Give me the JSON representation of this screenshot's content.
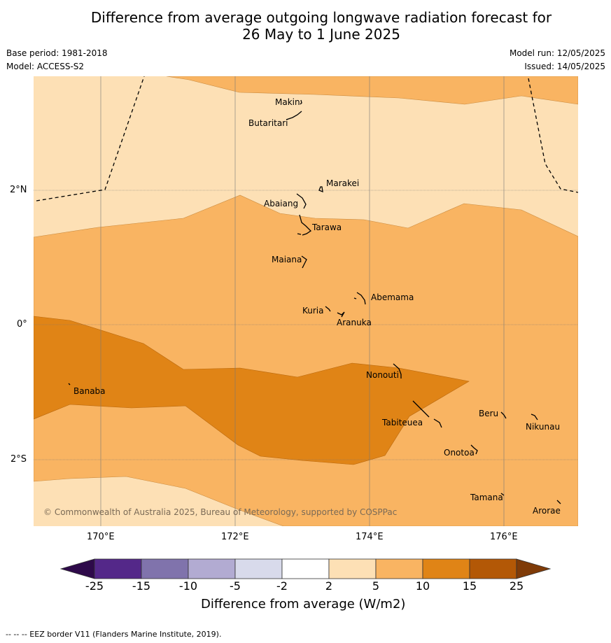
{
  "title": {
    "line1": "Difference from average outgoing longwave radiation forecast for",
    "line2": "26 May to 1 June 2025"
  },
  "meta": {
    "base_period": "Base period: 1981-2018",
    "model": "Model: ACCESS-S2",
    "model_run": "Model run: 12/05/2025",
    "issued": "Issued: 14/05/2025"
  },
  "map": {
    "lon_labels": [
      "170°E",
      "172°E",
      "174°E",
      "176°E"
    ],
    "lat_labels": [
      "2°N",
      "0°",
      "2°S"
    ],
    "copyright": "© Commonwealth of Australia 2025, Bureau of Meteorology, supported by COSPPac",
    "islands": [
      "Makin",
      "Butaritari",
      "Marakei",
      "Abaiang",
      "Tarawa",
      "Maiana",
      "Abemama",
      "Kuria",
      "Aranuka",
      "Banaba",
      "Nonouti",
      "Tabiteuea",
      "Beru",
      "Nikunau",
      "Onotoa",
      "Tamana",
      "Arorae"
    ],
    "fill_colors": {
      "2_to_5": "#fde0b5",
      "5_to_10": "#f9b462",
      "10_to_15": "#e08416"
    }
  },
  "colorbar": {
    "labels": [
      "-25",
      "-15",
      "-10",
      "-5",
      "-2",
      "2",
      "5",
      "10",
      "15",
      "25"
    ],
    "colors": [
      "#2e0a4a",
      "#542889",
      "#8073ac",
      "#b2abd2",
      "#d8daeb",
      "#ffffff",
      "#fde0b5",
      "#f9b462",
      "#e08416",
      "#b35806",
      "#7f3b08"
    ],
    "title": "Difference from average (W/m2)"
  },
  "footnote": "--  --  -- EEZ border V11 (Flanders Marine Institute, 2019)."
}
